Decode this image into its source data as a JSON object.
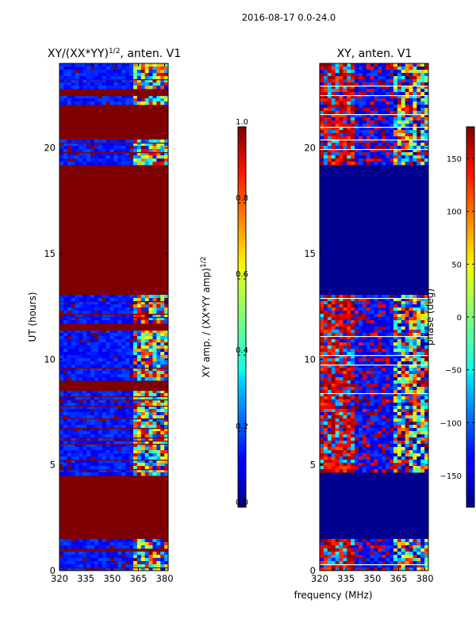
{
  "suptitle": "2016-08-17 0.0-24.0",
  "chart_data": [
    {
      "type": "heatmap",
      "title": "XY/(XX*YY)",
      "title_sup": "1/2",
      "title_suffix": ", anten. V1",
      "ylabel": "UT (hours)",
      "xticks": [
        "320",
        "335",
        "350",
        "365",
        "380"
      ],
      "xtick_values": [
        320,
        335,
        350,
        365,
        380
      ],
      "yticks": [
        "0",
        "5",
        "10",
        "15",
        "20"
      ],
      "ytick_values": [
        0,
        5,
        10,
        15,
        20
      ],
      "xlim": [
        320,
        382
      ],
      "ylim": [
        0,
        24
      ],
      "colorbar": {
        "label_main": "XY amp. / (XX*YY amp)",
        "label_sup": "1/2",
        "ticks": [
          "0.0",
          "0.2",
          "0.4",
          "0.6",
          "0.8",
          "1.0"
        ],
        "tick_values": [
          0.0,
          0.2,
          0.4,
          0.6,
          0.8,
          1.0
        ],
        "range": [
          0,
          1
        ]
      },
      "saturated_bands_hours": [
        [
          0.9,
          1.1
        ],
        [
          1.5,
          4.5
        ],
        [
          8.5,
          9.0
        ],
        [
          11.4,
          11.7
        ],
        [
          13.0,
          19.2
        ],
        [
          20.4,
          22.1
        ],
        [
          22.5,
          22.8
        ]
      ],
      "colormap": "jet"
    },
    {
      "type": "heatmap",
      "title": "XY, anten. V1",
      "xlabel": "frequency (MHz)",
      "xticks": [
        "320",
        "335",
        "350",
        "365",
        "380"
      ],
      "xtick_values": [
        320,
        335,
        350,
        365,
        380
      ],
      "yticks": [
        "0",
        "5",
        "10",
        "15",
        "20"
      ],
      "ytick_values": [
        0,
        5,
        10,
        15,
        20
      ],
      "xlim": [
        320,
        382
      ],
      "ylim": [
        0,
        24
      ],
      "colorbar": {
        "label_main": "phase (deg)",
        "ticks": [
          "−150",
          "−100",
          "−50",
          "0",
          "50",
          "100",
          "150"
        ],
        "tick_values": [
          -150,
          -100,
          -50,
          0,
          50,
          100,
          150
        ],
        "range": [
          -180,
          180
        ]
      },
      "active_bands_hours": [
        [
          0.0,
          1.5
        ],
        [
          4.6,
          13.0
        ],
        [
          19.2,
          24.0
        ]
      ],
      "colormap": "jet"
    }
  ]
}
